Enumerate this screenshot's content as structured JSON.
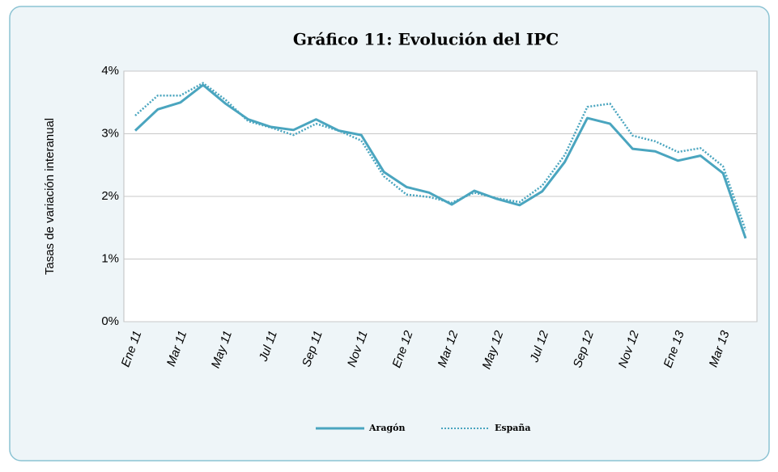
{
  "chart_data": {
    "type": "line",
    "title": "Gráfico 11: Evolución del IPC",
    "y_label": "Tasas de variación interanual",
    "categories": [
      "Ene 11",
      null,
      "Mar 11",
      null,
      "May 11",
      null,
      "Jul 11",
      null,
      "Sep 11",
      null,
      "Nov 11",
      null,
      "Ene 12",
      null,
      "Mar 12",
      null,
      "May 12",
      null,
      "Jul 12",
      null,
      "Sep 12",
      null,
      "Nov 12",
      null,
      "Ene 13",
      null,
      "Mar 13",
      null
    ],
    "series": [
      {
        "name": "Aragón",
        "color": "#4aa5bf",
        "style": "solid",
        "values": [
          3.05,
          3.39,
          3.5,
          3.78,
          3.48,
          3.23,
          3.11,
          3.06,
          3.23,
          3.05,
          2.98,
          2.39,
          2.15,
          2.06,
          1.87,
          2.09,
          1.96,
          1.86,
          2.08,
          2.55,
          3.25,
          3.16,
          2.76,
          2.72,
          2.57,
          2.65,
          2.37,
          1.33
        ]
      },
      {
        "name": "España",
        "color": "#4aa5bf",
        "style": "dotted",
        "values": [
          3.29,
          3.61,
          3.61,
          3.81,
          3.54,
          3.2,
          3.1,
          2.98,
          3.16,
          3.05,
          2.89,
          2.32,
          2.03,
          1.99,
          1.9,
          2.06,
          1.97,
          1.91,
          2.17,
          2.66,
          3.43,
          3.48,
          2.97,
          2.88,
          2.71,
          2.77,
          2.48,
          1.46
        ]
      }
    ],
    "ylim": [
      0,
      4
    ],
    "yticks": [
      {
        "value": 0,
        "label": "0%"
      },
      {
        "value": 1,
        "label": "1%"
      },
      {
        "value": 2,
        "label": "2%"
      },
      {
        "value": 3,
        "label": "3%"
      },
      {
        "value": 4,
        "label": "4%"
      }
    ],
    "grid": true,
    "legend": "bottom"
  }
}
